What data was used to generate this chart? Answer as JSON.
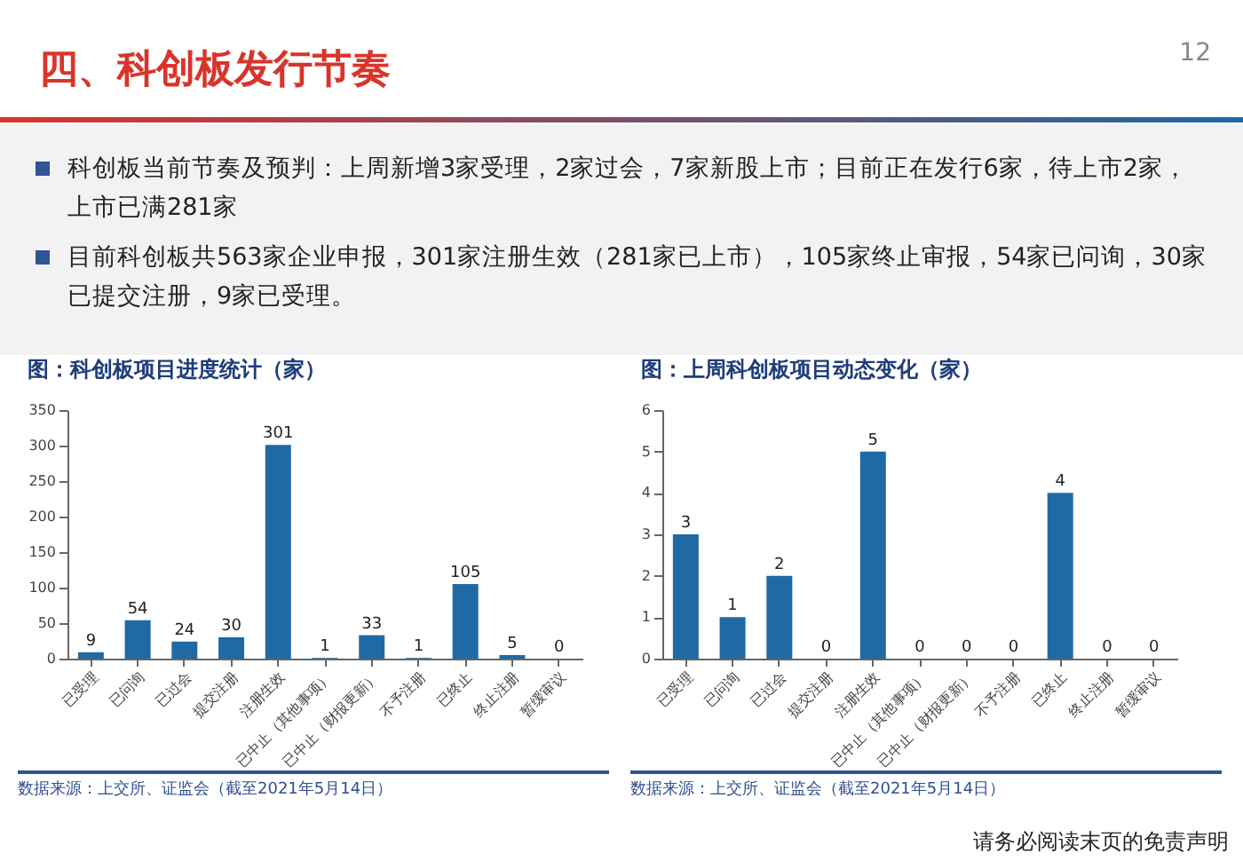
{
  "chart_data": [
    {
      "type": "other",
      "title": "四、科创板发行节奏",
      "annotations": [
        "12",
        "科创板当前节奏及预判：上周新增3家受理，2家过会，7家新股上市；目前正在发行6家，待上市2家，上市已满281家",
        "目前科创板共563家企业申报，301家注册生效（281家已上市），105家终止审报，54家已问询，30家已提交注册，9家已受理。",
        "请务必阅读末页的免责声明"
      ]
    },
    {
      "type": "bar",
      "title": "图：科创板项目进度统计（家）",
      "categories": [
        "已受理",
        "已问询",
        "已过会",
        "提交注册",
        "注册生效",
        "已中止（其他事项）",
        "已中止（财报更新）",
        "不予注册",
        "已终止",
        "终止注册",
        "暂缓审议"
      ],
      "values": [
        9,
        54,
        24,
        30,
        301,
        1,
        33,
        1,
        105,
        5,
        0
      ],
      "color": "#1f6aa5",
      "ylim": [
        0,
        350
      ],
      "yticks": [
        0,
        50,
        100,
        150,
        200,
        250,
        300,
        350
      ],
      "data_labels": true,
      "annotations": [
        "数据来源：上交所、证监会（截至2021年5月14日）"
      ]
    },
    {
      "type": "bar",
      "title": "图：上周科创板项目动态变化（家）",
      "categories": [
        "已受理",
        "已问询",
        "已过会",
        "提交注册",
        "注册生效",
        "已中止（其他事项）",
        "已中止（财报更新）",
        "不予注册",
        "已终止",
        "终止注册",
        "暂缓审议"
      ],
      "values": [
        3,
        1,
        2,
        0,
        5,
        0,
        0,
        0,
        4,
        0,
        0
      ],
      "color": "#1f6aa5",
      "ylim": [
        0,
        6
      ],
      "yticks": [
        0,
        1,
        2,
        3,
        4,
        5,
        6
      ],
      "data_labels": true,
      "annotations": [
        "数据来源：上交所、证监会（截至2021年5月14日）"
      ]
    }
  ]
}
